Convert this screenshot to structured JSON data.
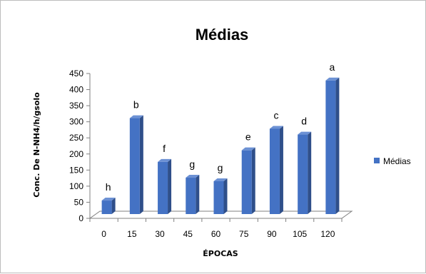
{
  "chart_data": {
    "type": "bar",
    "title": "Médias",
    "xlabel": "ÉPOCAS",
    "ylabel": "Conc. De N-NH4/h/gsolo",
    "categories": [
      "0",
      "15",
      "30",
      "45",
      "60",
      "75",
      "90",
      "105",
      "120"
    ],
    "series": [
      {
        "name": "Médias",
        "color": "#4472c4",
        "values": [
          42,
          298,
          162,
          113,
          102,
          198,
          265,
          247,
          415
        ],
        "letters": [
          "h",
          "b",
          "f",
          "g",
          "g",
          "e",
          "c",
          "d",
          "a"
        ]
      }
    ],
    "ylim": [
      0,
      450
    ],
    "yticks": [
      "0",
      "50",
      "100",
      "150",
      "200",
      "250",
      "300",
      "350",
      "400",
      "450"
    ],
    "grid": false,
    "legend_position": "right",
    "style": "3d-column"
  }
}
